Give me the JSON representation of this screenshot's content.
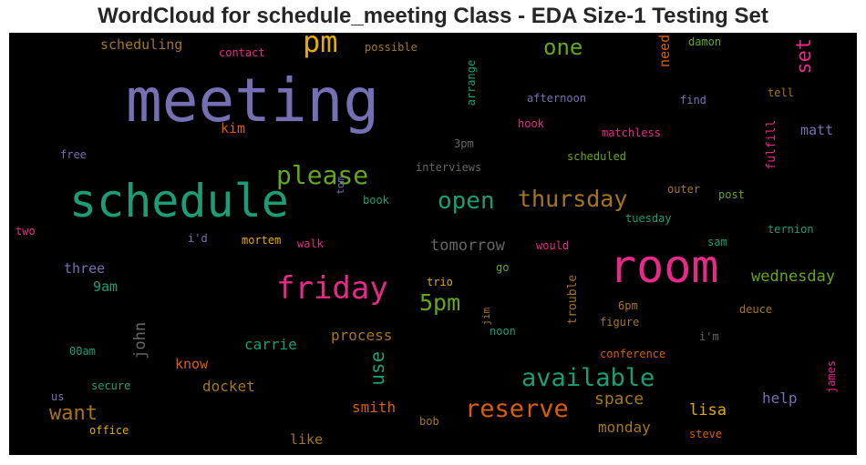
{
  "chart_data": {
    "type": "wordcloud",
    "title": "WordCloud for schedule_meeting Class - EDA Size-1 Testing Set",
    "background": "#000000",
    "words": [
      {
        "text": "meeting",
        "color": "#7570b3",
        "size": 66
      },
      {
        "text": "schedule",
        "color": "#1b9e77",
        "size": 50
      },
      {
        "text": "room",
        "color": "#e7298a",
        "size": 50
      },
      {
        "text": "pm",
        "color": "#e6ab02",
        "size": 32
      },
      {
        "text": "friday",
        "color": "#e7298a",
        "size": 34
      },
      {
        "text": "please",
        "color": "#66a61e",
        "size": 28
      },
      {
        "text": "available",
        "color": "#1b9e77",
        "size": 27
      },
      {
        "text": "reserve",
        "color": "#d95f02",
        "size": 27
      },
      {
        "text": "thursday",
        "color": "#a6761d",
        "size": 25
      },
      {
        "text": "open",
        "color": "#1b9e77",
        "size": 26
      },
      {
        "text": "5pm",
        "color": "#66a61e",
        "size": 25
      },
      {
        "text": "one",
        "color": "#66a61e",
        "size": 24
      },
      {
        "text": "want",
        "color": "#a6761d",
        "size": 22
      },
      {
        "text": "set",
        "color": "#e7298a",
        "size": 22
      },
      {
        "text": "use",
        "color": "#1b9e77",
        "size": 21
      },
      {
        "text": "tomorrow",
        "color": "#666666",
        "size": 17
      },
      {
        "text": "space",
        "color": "#a6761d",
        "size": 18
      },
      {
        "text": "wednesday",
        "color": "#66a61e",
        "size": 17
      },
      {
        "text": "lisa",
        "color": "#e6ab02",
        "size": 17
      },
      {
        "text": "john",
        "color": "#666666",
        "size": 17
      },
      {
        "text": "monday",
        "color": "#a6761d",
        "size": 16
      },
      {
        "text": "help",
        "color": "#7570b3",
        "size": 16
      },
      {
        "text": "smith",
        "color": "#d95f02",
        "size": 16
      },
      {
        "text": "process",
        "color": "#a6761d",
        "size": 16
      },
      {
        "text": "docket",
        "color": "#a6761d",
        "size": 16
      },
      {
        "text": "carrie",
        "color": "#1b9e77",
        "size": 16
      },
      {
        "text": "like",
        "color": "#a6761d",
        "size": 15
      },
      {
        "text": "know",
        "color": "#d95f02",
        "size": 15
      },
      {
        "text": "three",
        "color": "#7570b3",
        "size": 15
      },
      {
        "text": "matt",
        "color": "#7570b3",
        "size": 15
      },
      {
        "text": "9am",
        "color": "#1b9e77",
        "size": 15
      },
      {
        "text": "kim",
        "color": "#d95f02",
        "size": 15
      },
      {
        "text": "scheduling",
        "color": "#a6761d",
        "size": 15
      },
      {
        "text": "need",
        "color": "#d95f02",
        "size": 15
      },
      {
        "text": "trouble",
        "color": "#a6761d",
        "size": 13
      },
      {
        "text": "fulfill",
        "color": "#e7298a",
        "size": 13
      },
      {
        "text": "james",
        "color": "#e7298a",
        "size": 12
      },
      {
        "text": "arrange",
        "color": "#1b9e77",
        "size": 12
      },
      {
        "text": "contact",
        "color": "#e7298a",
        "size": 12
      },
      {
        "text": "possible",
        "color": "#a6761d",
        "size": 12
      },
      {
        "text": "damon",
        "color": "#66a61e",
        "size": 12
      },
      {
        "text": "afternoon",
        "color": "#7570b3",
        "size": 12
      },
      {
        "text": "find",
        "color": "#7570b3",
        "size": 12
      },
      {
        "text": "tell",
        "color": "#a6761d",
        "size": 12
      },
      {
        "text": "hook",
        "color": "#e7298a",
        "size": 12
      },
      {
        "text": "matchless",
        "color": "#e7298a",
        "size": 12
      },
      {
        "text": "3pm",
        "color": "#666666",
        "size": 12
      },
      {
        "text": "scheduled",
        "color": "#66a61e",
        "size": 12
      },
      {
        "text": "free",
        "color": "#7570b3",
        "size": 12
      },
      {
        "text": "interviews",
        "color": "#666666",
        "size": 12
      },
      {
        "text": "tom",
        "color": "#7570b3",
        "size": 11
      },
      {
        "text": "book",
        "color": "#1b9e77",
        "size": 12
      },
      {
        "text": "outer",
        "color": "#a6761d",
        "size": 12
      },
      {
        "text": "post",
        "color": "#66a61e",
        "size": 12
      },
      {
        "text": "tuesday",
        "color": "#1b9e77",
        "size": 12
      },
      {
        "text": "ternion",
        "color": "#1b9e77",
        "size": 12
      },
      {
        "text": "two",
        "color": "#e7298a",
        "size": 12
      },
      {
        "text": "i'd",
        "color": "#7570b3",
        "size": 12
      },
      {
        "text": "mortem",
        "color": "#e6ab02",
        "size": 12
      },
      {
        "text": "walk",
        "color": "#e7298a",
        "size": 12
      },
      {
        "text": "would",
        "color": "#e7298a",
        "size": 12
      },
      {
        "text": "sam",
        "color": "#1b9e77",
        "size": 12
      },
      {
        "text": "go",
        "color": "#66a61e",
        "size": 12
      },
      {
        "text": "trio",
        "color": "#e6ab02",
        "size": 12
      },
      {
        "text": "6pm",
        "color": "#a6761d",
        "size": 12
      },
      {
        "text": "deuce",
        "color": "#a6761d",
        "size": 12
      },
      {
        "text": "jim",
        "color": "#a6761d",
        "size": 11
      },
      {
        "text": "noon",
        "color": "#1b9e77",
        "size": 12
      },
      {
        "text": "figure",
        "color": "#a6761d",
        "size": 12
      },
      {
        "text": "i'm",
        "color": "#666666",
        "size": 12
      },
      {
        "text": "00am",
        "color": "#1b9e77",
        "size": 12
      },
      {
        "text": "conference",
        "color": "#d95f02",
        "size": 12
      },
      {
        "text": "secure",
        "color": "#1b9e77",
        "size": 12
      },
      {
        "text": "us",
        "color": "#7570b3",
        "size": 12
      },
      {
        "text": "office",
        "color": "#e6ab02",
        "size": 12
      },
      {
        "text": "bob",
        "color": "#a6761d",
        "size": 12
      },
      {
        "text": "steve",
        "color": "#d95f02",
        "size": 12
      }
    ]
  }
}
